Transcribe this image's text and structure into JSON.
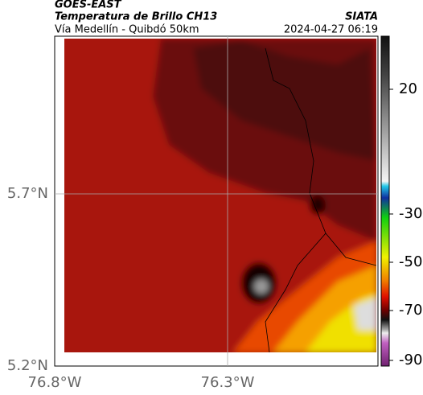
{
  "header": {
    "source": "GOES-EAST",
    "title": "Temperatura de Brillo CH13",
    "agency": "SIATA",
    "route": "Vía Medellín - Quibdó 50km",
    "timestamp": "2024-04-27 06:19"
  },
  "axes": {
    "latitude_labels": [
      "5.7°N",
      "5.2°N"
    ],
    "longitude_labels": [
      "76.8°W",
      "76.3°W"
    ]
  },
  "colorbar": {
    "ticks": [
      20,
      -30,
      -50,
      -70,
      -90
    ]
  }
}
